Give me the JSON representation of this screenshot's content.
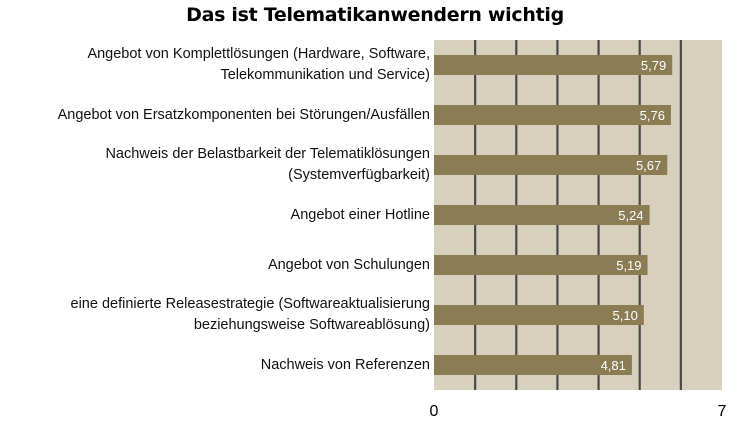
{
  "chart_data": {
    "type": "bar",
    "orientation": "horizontal",
    "title": "Das ist Telematikanwendern wichtig",
    "categories": [
      "Angebot von Komplettlösungen (Hardware, Software,\nTelekommunikation und Service)",
      "Angebot von Ersatzkomponenten bei Störungen/Ausfällen",
      "Nachweis der Belastbarkeit der Telematiklösungen\n(Systemverfügbarkeit)",
      "Angebot einer Hotline",
      "Angebot von Schulungen",
      "eine definierte Releasestrategie (Softwareaktualisierung\nbeziehungsweise Softwareablösung)",
      "Nachweis von Referenzen"
    ],
    "values": [
      5.79,
      5.76,
      5.67,
      5.24,
      5.19,
      5.1,
      4.81
    ],
    "value_labels": [
      "5,79",
      "5,76",
      "5,67",
      "5,24",
      "5,19",
      "5,10",
      "4,81"
    ],
    "xlim": [
      0,
      7
    ],
    "xticks": [
      "0",
      "7"
    ],
    "grid": true,
    "colors": {
      "background": "#d6d0bd",
      "bar": "#8b7c54",
      "grid": "#4a4a4a",
      "value_text": "#ffffff"
    }
  }
}
